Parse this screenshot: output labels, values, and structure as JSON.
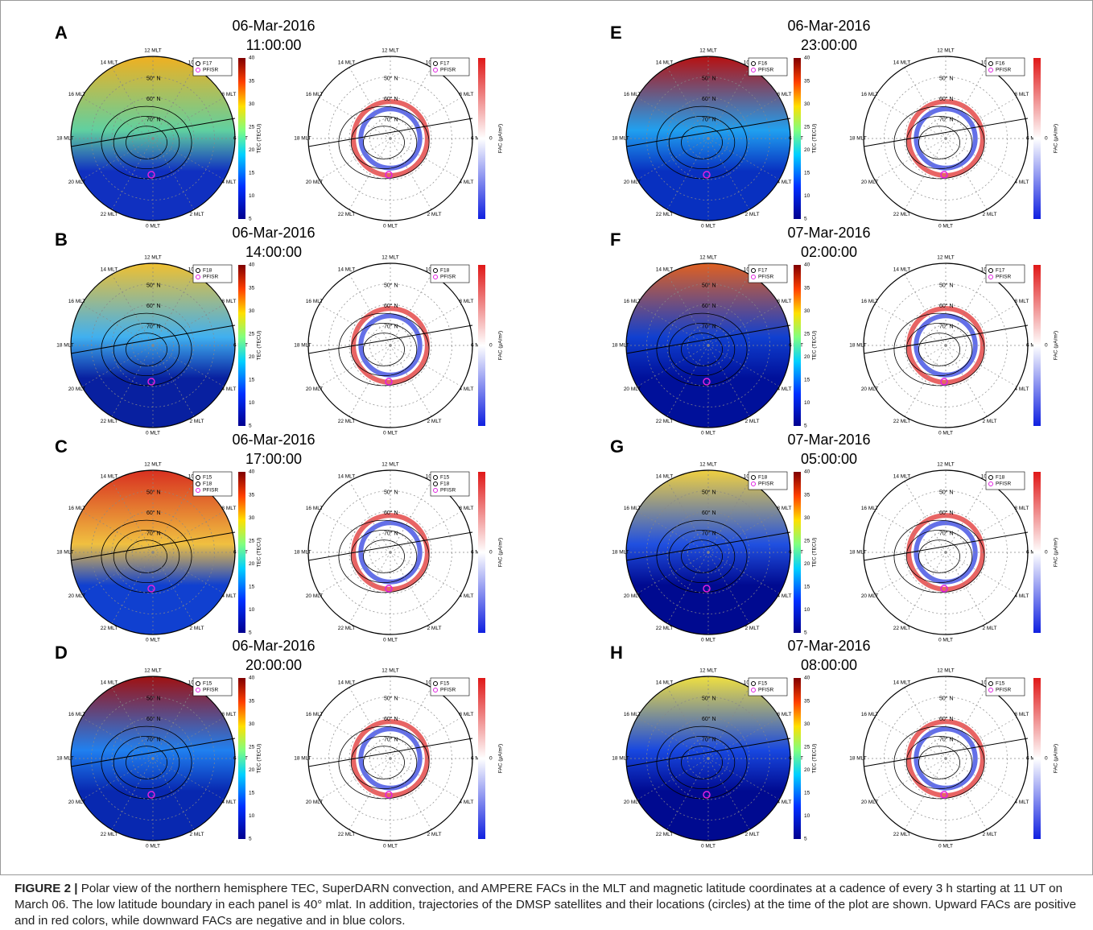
{
  "figure": {
    "panels": [
      {
        "letter": "A",
        "date": "06-Mar-2016",
        "time": "11:00:00",
        "legend": [
          "F17",
          "PFISR"
        ]
      },
      {
        "letter": "B",
        "date": "06-Mar-2016",
        "time": "14:00:00",
        "legend": [
          "F18",
          "PFISR"
        ]
      },
      {
        "letter": "C",
        "date": "06-Mar-2016",
        "time": "17:00:00",
        "legend": [
          "F15",
          "F18",
          "PFISR"
        ]
      },
      {
        "letter": "D",
        "date": "06-Mar-2016",
        "time": "20:00:00",
        "legend": [
          "F15",
          "PFISR"
        ]
      },
      {
        "letter": "E",
        "date": "06-Mar-2016",
        "time": "23:00:00",
        "legend": [
          "F16",
          "PFISR"
        ]
      },
      {
        "letter": "F",
        "date": "07-Mar-2016",
        "time": "02:00:00",
        "legend": [
          "F17",
          "PFISR"
        ]
      },
      {
        "letter": "G",
        "date": "07-Mar-2016",
        "time": "05:00:00",
        "legend": [
          "F18",
          "PFISR"
        ]
      },
      {
        "letter": "H",
        "date": "07-Mar-2016",
        "time": "08:00:00",
        "legend": [
          "F15",
          "PFISR"
        ]
      }
    ],
    "mlt_labels": [
      "12 MLT",
      "14 MLT",
      "16 MLT",
      "18 MLT",
      "20 MLT",
      "22 MLT",
      "0 MLT",
      "2 MLT",
      "4 MLT",
      "6 MLT",
      "8 MLT",
      "10 MLT"
    ],
    "lat_labels": [
      "50° N",
      "60° N",
      "70° N"
    ],
    "tec_colorbar": {
      "label": "TEC (TECU)",
      "ticks": [
        5,
        10,
        15,
        20,
        25,
        30,
        35,
        40
      ]
    },
    "fac_colorbar": {
      "label": "FAC (μA/m²)",
      "ticks": [
        0
      ]
    }
  },
  "caption": {
    "label": "FIGURE 2 |",
    "text": "Polar view of the northern hemisphere TEC, SuperDARN convection, and AMPERE FACs in the MLT and magnetic latitude coordinates at a cadence of every 3 h starting at 11 UT on March 06. The low latitude boundary in each panel is 40° mlat. In addition, trajectories of the DMSP satellites and their locations (circles) at the time of the plot are shown. Upward FACs are positive and in red colors, while downward FACs are negative and in blue colors."
  }
}
